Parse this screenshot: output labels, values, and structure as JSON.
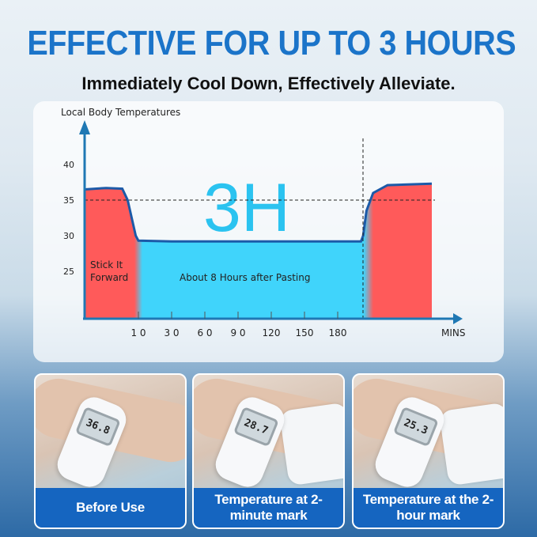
{
  "header": {
    "title": "EFFECTIVE FOR UP TO 3 HOURS",
    "subtitle": "Immediately Cool Down, Effectively Alleviate."
  },
  "chart_data": {
    "type": "area",
    "ylabel": "Local Body Temperatures",
    "xlabel": "MINS",
    "y_ticks": [
      "40",
      "35",
      "30",
      "25"
    ],
    "x_ticks": [
      "1 0",
      "3 0",
      "6 0",
      "9 0",
      "120",
      "150",
      "180"
    ],
    "big_label": "3H",
    "annotations": [
      "Stick It Forward",
      "About 8 Hours after Pasting"
    ],
    "reference_line_y": 35,
    "points": [
      [
        0,
        36.5
      ],
      [
        4,
        36.7
      ],
      [
        7,
        36.6
      ],
      [
        8,
        35
      ],
      [
        9.5,
        30
      ],
      [
        10,
        29.3
      ],
      [
        30,
        29.2
      ],
      [
        180,
        29.2
      ],
      [
        201,
        29.2
      ],
      [
        203,
        30
      ],
      [
        206,
        33.5
      ],
      [
        212,
        36
      ],
      [
        225,
        37.1
      ],
      [
        265,
        37.3
      ]
    ],
    "colors": {
      "warm": "#ff5a5a",
      "cool": "#40d4fb",
      "line": "#1c5aa8",
      "big": "#2bc3f0"
    }
  },
  "cards": [
    {
      "reading": "36.8",
      "label": "Before Use"
    },
    {
      "reading": "28.7",
      "label": "Temperature at 2-minute mark"
    },
    {
      "reading": "25.3",
      "label": "Temperature at the 2-hour mark"
    }
  ]
}
